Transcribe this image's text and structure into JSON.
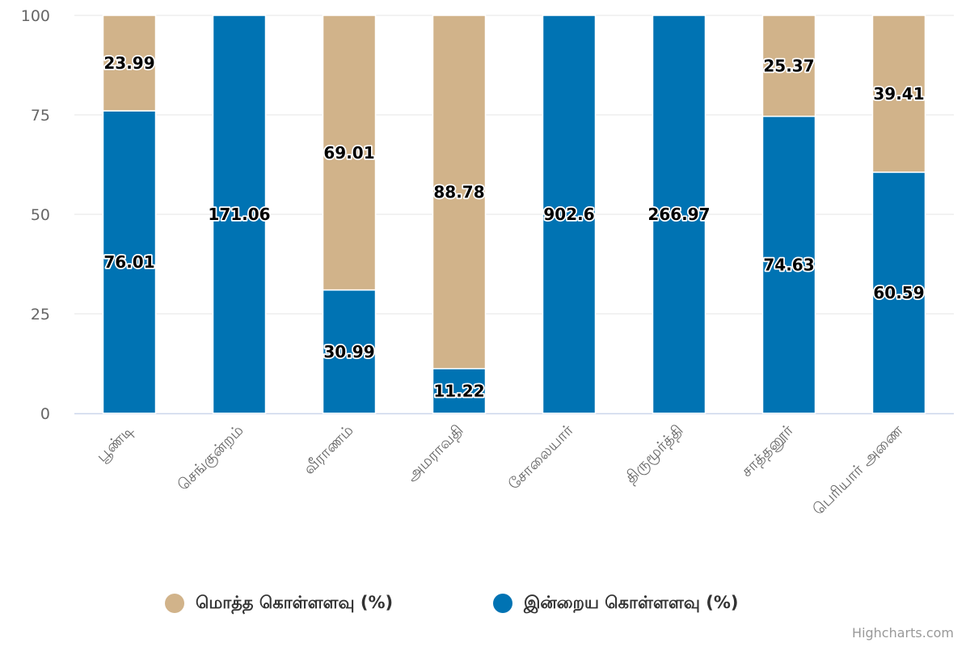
{
  "chart_data": {
    "type": "bar",
    "stacking": "percent",
    "categories": [
      "பூண்டி",
      "செங்குன்றம்",
      "வீராணம்",
      "அமராவதி",
      "சோலையார்",
      "திருமூர்த்தி",
      "சாத்தனூர்",
      "பெரியார் அணை"
    ],
    "series": [
      {
        "name": "மொத்த கொள்ளளவு (%)",
        "color": "#d1b38a",
        "values": [
          23.99,
          null,
          69.01,
          88.78,
          null,
          null,
          25.37,
          39.41
        ]
      },
      {
        "name": "இன்றைய கொள்ளளவு (%)",
        "color": "#0073b3",
        "values": [
          76.01,
          171.06,
          30.99,
          11.22,
          902.6,
          266.97,
          74.63,
          60.59
        ]
      }
    ],
    "ylim": [
      0,
      100
    ],
    "yticks": [
      0,
      25,
      50,
      75,
      100
    ],
    "grid": true,
    "legend_position": "bottom"
  },
  "colors": {
    "grid": "#e6e6e6",
    "axis_line": "#ccd6eb",
    "tick_text": "#666666",
    "label_text": "#000000"
  },
  "legend": {
    "items": [
      {
        "label": "மொத்த கொள்ளளவு (%)",
        "color": "#d1b38a"
      },
      {
        "label": "இன்றைய கொள்ளளவு (%)",
        "color": "#0073b3"
      }
    ]
  },
  "credits": "Highcharts.com"
}
